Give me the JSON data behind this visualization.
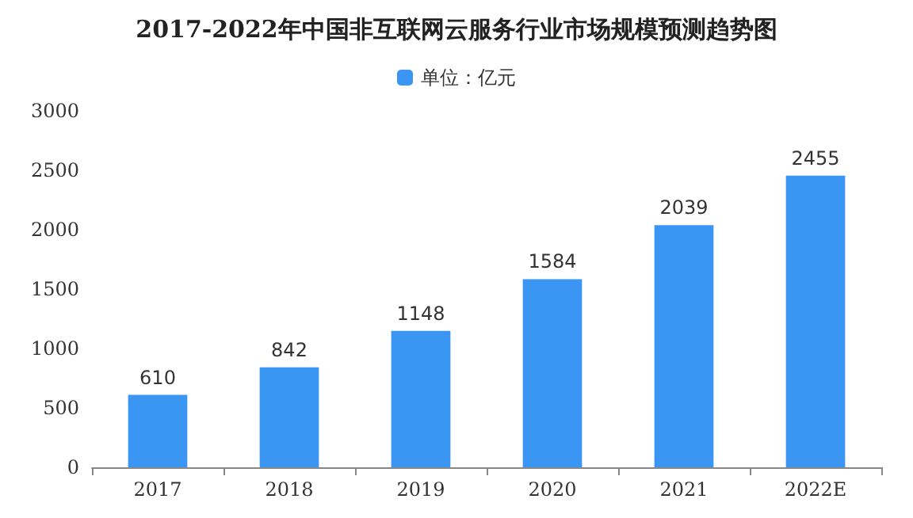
{
  "chart_data": {
    "type": "bar",
    "title": "2017-2022年中国非互联网云服务行业市场规模预测趋势图",
    "categories": [
      "2017",
      "2018",
      "2019",
      "2020",
      "2021",
      "2022E"
    ],
    "series": [
      {
        "name": "单位：亿元",
        "color": "#3a96f2",
        "values": [
          610,
          842,
          1148,
          1584,
          2039,
          2455
        ]
      }
    ],
    "ylim": [
      0,
      3000
    ],
    "yticks": [
      0,
      500,
      1000,
      1500,
      2000,
      2500,
      3000
    ],
    "grid": false,
    "legend": "top",
    "data_labels": true
  }
}
